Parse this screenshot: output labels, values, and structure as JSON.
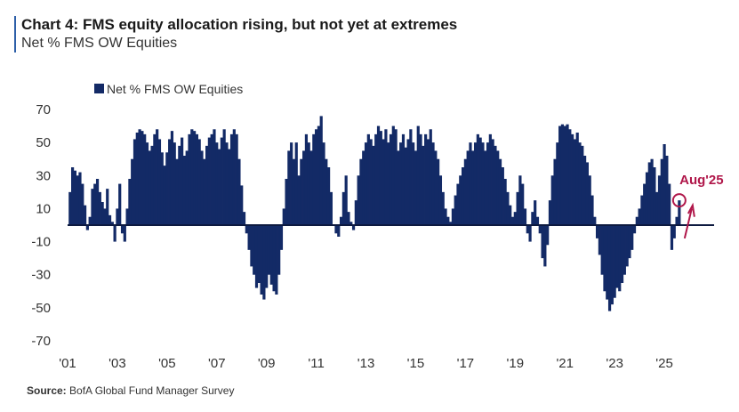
{
  "title": "Chart 4: FMS equity allocation rising, but not yet at extremes",
  "subtitle": "Net % FMS OW Equities",
  "source_label": "Source:",
  "source_text": "BofA Global Fund Manager Survey",
  "colors": {
    "bar": "#132a66",
    "zero_line": "#0d1a40",
    "annotation": "#b0174a",
    "title_rule": "#2d5fa8"
  },
  "chart_data": {
    "type": "bar",
    "legend": "Net % FMS OW Equities",
    "legend_position": "top-left",
    "grid": false,
    "ylim": [
      -70,
      70
    ],
    "yticks": [
      70,
      50,
      30,
      10,
      -10,
      -30,
      -50,
      -70
    ],
    "xlim": [
      2001.0,
      2027.0
    ],
    "xticks": [
      {
        "value": 2001,
        "label": "'01"
      },
      {
        "value": 2003,
        "label": "'03"
      },
      {
        "value": 2005,
        "label": "'05"
      },
      {
        "value": 2007,
        "label": "'07"
      },
      {
        "value": 2009,
        "label": "'09"
      },
      {
        "value": 2011,
        "label": "'11"
      },
      {
        "value": 2013,
        "label": "'13"
      },
      {
        "value": 2015,
        "label": "'15"
      },
      {
        "value": 2017,
        "label": "'17"
      },
      {
        "value": 2019,
        "label": "'19"
      },
      {
        "value": 2021,
        "label": "'21"
      },
      {
        "value": 2023,
        "label": "'23"
      },
      {
        "value": 2025,
        "label": "'25"
      }
    ],
    "annotation": {
      "label": "Aug'25",
      "x": 2025.6,
      "y": 15
    },
    "points": [
      [
        2001.1,
        20
      ],
      [
        2001.2,
        35
      ],
      [
        2001.3,
        33
      ],
      [
        2001.4,
        30
      ],
      [
        2001.5,
        32
      ],
      [
        2001.6,
        25
      ],
      [
        2001.7,
        12
      ],
      [
        2001.8,
        -3
      ],
      [
        2001.9,
        5
      ],
      [
        2002.0,
        22
      ],
      [
        2002.1,
        25
      ],
      [
        2002.2,
        28
      ],
      [
        2002.3,
        20
      ],
      [
        2002.4,
        14
      ],
      [
        2002.5,
        10
      ],
      [
        2002.6,
        22
      ],
      [
        2002.7,
        6
      ],
      [
        2002.8,
        2
      ],
      [
        2002.9,
        -10
      ],
      [
        2003.0,
        10
      ],
      [
        2003.1,
        25
      ],
      [
        2003.2,
        -5
      ],
      [
        2003.3,
        -10
      ],
      [
        2003.4,
        10
      ],
      [
        2003.5,
        28
      ],
      [
        2003.6,
        40
      ],
      [
        2003.7,
        52
      ],
      [
        2003.8,
        56
      ],
      [
        2003.9,
        58
      ],
      [
        2004.0,
        57
      ],
      [
        2004.1,
        55
      ],
      [
        2004.2,
        50
      ],
      [
        2004.3,
        45
      ],
      [
        2004.4,
        48
      ],
      [
        2004.5,
        55
      ],
      [
        2004.6,
        58
      ],
      [
        2004.7,
        52
      ],
      [
        2004.8,
        44
      ],
      [
        2004.9,
        36
      ],
      [
        2005.0,
        44
      ],
      [
        2005.1,
        52
      ],
      [
        2005.2,
        57
      ],
      [
        2005.3,
        50
      ],
      [
        2005.4,
        40
      ],
      [
        2005.5,
        48
      ],
      [
        2005.6,
        53
      ],
      [
        2005.7,
        42
      ],
      [
        2005.8,
        45
      ],
      [
        2005.9,
        55
      ],
      [
        2006.0,
        58
      ],
      [
        2006.1,
        57
      ],
      [
        2006.2,
        55
      ],
      [
        2006.3,
        52
      ],
      [
        2006.4,
        45
      ],
      [
        2006.5,
        40
      ],
      [
        2006.6,
        48
      ],
      [
        2006.7,
        53
      ],
      [
        2006.8,
        55
      ],
      [
        2006.9,
        58
      ],
      [
        2007.0,
        50
      ],
      [
        2007.1,
        46
      ],
      [
        2007.2,
        53
      ],
      [
        2007.3,
        58
      ],
      [
        2007.4,
        50
      ],
      [
        2007.5,
        46
      ],
      [
        2007.6,
        55
      ],
      [
        2007.7,
        58
      ],
      [
        2007.8,
        55
      ],
      [
        2007.9,
        40
      ],
      [
        2008.0,
        24
      ],
      [
        2008.1,
        8
      ],
      [
        2008.2,
        -5
      ],
      [
        2008.3,
        -15
      ],
      [
        2008.4,
        -25
      ],
      [
        2008.5,
        -30
      ],
      [
        2008.6,
        -38
      ],
      [
        2008.7,
        -35
      ],
      [
        2008.8,
        -42
      ],
      [
        2008.9,
        -45
      ],
      [
        2009.0,
        -38
      ],
      [
        2009.1,
        -30
      ],
      [
        2009.2,
        -36
      ],
      [
        2009.3,
        -40
      ],
      [
        2009.4,
        -42
      ],
      [
        2009.5,
        -30
      ],
      [
        2009.6,
        -15
      ],
      [
        2009.7,
        10
      ],
      [
        2009.8,
        28
      ],
      [
        2009.9,
        45
      ],
      [
        2010.0,
        50
      ],
      [
        2010.1,
        40
      ],
      [
        2010.2,
        50
      ],
      [
        2010.3,
        30
      ],
      [
        2010.4,
        40
      ],
      [
        2010.5,
        45
      ],
      [
        2010.6,
        55
      ],
      [
        2010.7,
        50
      ],
      [
        2010.8,
        45
      ],
      [
        2010.9,
        55
      ],
      [
        2011.0,
        58
      ],
      [
        2011.1,
        60
      ],
      [
        2011.2,
        66
      ],
      [
        2011.3,
        50
      ],
      [
        2011.4,
        40
      ],
      [
        2011.5,
        35
      ],
      [
        2011.6,
        20
      ],
      [
        2011.7,
        0
      ],
      [
        2011.8,
        -5
      ],
      [
        2011.9,
        -7
      ],
      [
        2012.0,
        5
      ],
      [
        2012.1,
        20
      ],
      [
        2012.2,
        30
      ],
      [
        2012.3,
        8
      ],
      [
        2012.4,
        2
      ],
      [
        2012.5,
        -3
      ],
      [
        2012.6,
        15
      ],
      [
        2012.7,
        30
      ],
      [
        2012.8,
        40
      ],
      [
        2012.9,
        45
      ],
      [
        2013.0,
        50
      ],
      [
        2013.1,
        55
      ],
      [
        2013.2,
        52
      ],
      [
        2013.3,
        48
      ],
      [
        2013.4,
        55
      ],
      [
        2013.5,
        60
      ],
      [
        2013.6,
        57
      ],
      [
        2013.7,
        52
      ],
      [
        2013.8,
        58
      ],
      [
        2013.9,
        50
      ],
      [
        2014.0,
        55
      ],
      [
        2014.1,
        60
      ],
      [
        2014.2,
        58
      ],
      [
        2014.3,
        45
      ],
      [
        2014.4,
        50
      ],
      [
        2014.5,
        55
      ],
      [
        2014.6,
        47
      ],
      [
        2014.7,
        52
      ],
      [
        2014.8,
        58
      ],
      [
        2014.9,
        50
      ],
      [
        2015.0,
        45
      ],
      [
        2015.1,
        60
      ],
      [
        2015.2,
        55
      ],
      [
        2015.3,
        48
      ],
      [
        2015.4,
        55
      ],
      [
        2015.5,
        52
      ],
      [
        2015.6,
        58
      ],
      [
        2015.7,
        50
      ],
      [
        2015.8,
        45
      ],
      [
        2015.9,
        40
      ],
      [
        2016.0,
        30
      ],
      [
        2016.1,
        20
      ],
      [
        2016.2,
        10
      ],
      [
        2016.3,
        5
      ],
      [
        2016.4,
        2
      ],
      [
        2016.5,
        10
      ],
      [
        2016.6,
        18
      ],
      [
        2016.7,
        25
      ],
      [
        2016.8,
        30
      ],
      [
        2016.9,
        35
      ],
      [
        2017.0,
        40
      ],
      [
        2017.1,
        45
      ],
      [
        2017.2,
        50
      ],
      [
        2017.3,
        45
      ],
      [
        2017.4,
        50
      ],
      [
        2017.5,
        55
      ],
      [
        2017.6,
        53
      ],
      [
        2017.7,
        50
      ],
      [
        2017.8,
        45
      ],
      [
        2017.9,
        50
      ],
      [
        2018.0,
        55
      ],
      [
        2018.1,
        52
      ],
      [
        2018.2,
        48
      ],
      [
        2018.3,
        45
      ],
      [
        2018.4,
        40
      ],
      [
        2018.5,
        35
      ],
      [
        2018.6,
        28
      ],
      [
        2018.7,
        20
      ],
      [
        2018.8,
        12
      ],
      [
        2018.9,
        5
      ],
      [
        2019.0,
        8
      ],
      [
        2019.1,
        20
      ],
      [
        2019.2,
        30
      ],
      [
        2019.3,
        25
      ],
      [
        2019.4,
        10
      ],
      [
        2019.5,
        -5
      ],
      [
        2019.6,
        -10
      ],
      [
        2019.7,
        8
      ],
      [
        2019.8,
        15
      ],
      [
        2019.9,
        5
      ],
      [
        2020.0,
        -5
      ],
      [
        2020.1,
        -20
      ],
      [
        2020.2,
        -25
      ],
      [
        2020.3,
        -12
      ],
      [
        2020.4,
        15
      ],
      [
        2020.5,
        30
      ],
      [
        2020.6,
        40
      ],
      [
        2020.7,
        50
      ],
      [
        2020.8,
        60
      ],
      [
        2020.9,
        61
      ],
      [
        2021.0,
        60
      ],
      [
        2021.1,
        61
      ],
      [
        2021.2,
        58
      ],
      [
        2021.3,
        55
      ],
      [
        2021.4,
        52
      ],
      [
        2021.5,
        56
      ],
      [
        2021.6,
        50
      ],
      [
        2021.7,
        48
      ],
      [
        2021.8,
        42
      ],
      [
        2021.9,
        38
      ],
      [
        2022.0,
        30
      ],
      [
        2022.1,
        18
      ],
      [
        2022.2,
        5
      ],
      [
        2022.3,
        -8
      ],
      [
        2022.4,
        -18
      ],
      [
        2022.5,
        -30
      ],
      [
        2022.6,
        -40
      ],
      [
        2022.7,
        -45
      ],
      [
        2022.8,
        -52
      ],
      [
        2022.9,
        -48
      ],
      [
        2023.0,
        -44
      ],
      [
        2023.1,
        -38
      ],
      [
        2023.2,
        -40
      ],
      [
        2023.3,
        -35
      ],
      [
        2023.4,
        -30
      ],
      [
        2023.5,
        -25
      ],
      [
        2023.6,
        -20
      ],
      [
        2023.7,
        -15
      ],
      [
        2023.8,
        -5
      ],
      [
        2023.9,
        5
      ],
      [
        2024.0,
        10
      ],
      [
        2024.1,
        18
      ],
      [
        2024.2,
        25
      ],
      [
        2024.3,
        32
      ],
      [
        2024.4,
        38
      ],
      [
        2024.5,
        40
      ],
      [
        2024.6,
        35
      ],
      [
        2024.7,
        20
      ],
      [
        2024.8,
        30
      ],
      [
        2024.9,
        40
      ],
      [
        2025.0,
        49
      ],
      [
        2025.1,
        42
      ],
      [
        2025.2,
        25
      ],
      [
        2025.3,
        -15
      ],
      [
        2025.4,
        -8
      ],
      [
        2025.5,
        5
      ],
      [
        2025.6,
        15
      ]
    ]
  }
}
